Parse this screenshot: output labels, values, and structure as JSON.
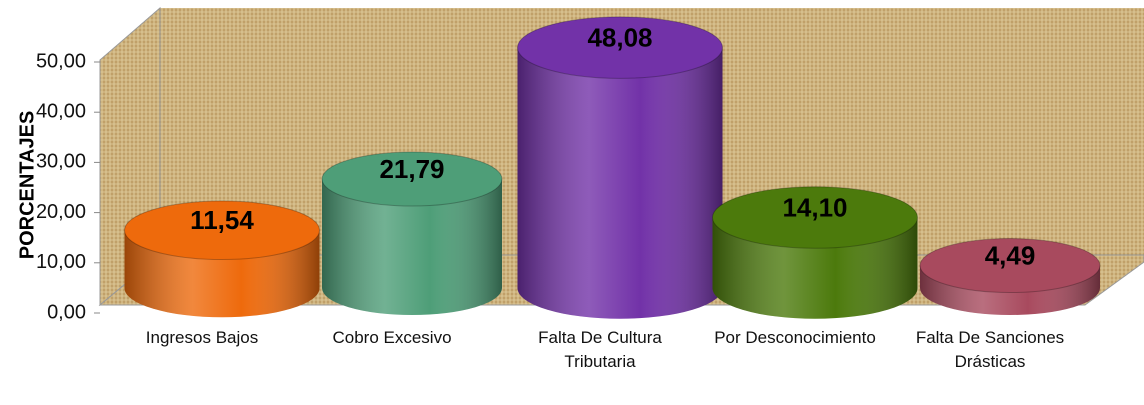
{
  "chart_data": {
    "type": "bar",
    "y_label": "PORCENTAJES",
    "categories": [
      "Ingresos Bajos",
      "Cobro Excesivo",
      "Falta De Cultura Tributaria",
      "Por Desconocimiento",
      "Falta De Sanciones Drásticas"
    ],
    "values": [
      11.54,
      21.79,
      48.08,
      14.1,
      4.49
    ],
    "value_labels": [
      "11,54",
      "21,79",
      "48,08",
      "14,10",
      "4,49"
    ],
    "colors": [
      "#ee6a0c",
      "#4e9e78",
      "#7232a8",
      "#4c7a0c",
      "#a84a5e"
    ],
    "ylim": [
      0,
      50
    ],
    "yticks": [
      {
        "value": 0,
        "label": "0,00"
      },
      {
        "value": 10,
        "label": "10,00"
      },
      {
        "value": 20,
        "label": "20,00"
      },
      {
        "value": 30,
        "label": "30,00"
      },
      {
        "value": 40,
        "label": "40,00"
      },
      {
        "value": 50,
        "label": "50,00"
      }
    ]
  }
}
